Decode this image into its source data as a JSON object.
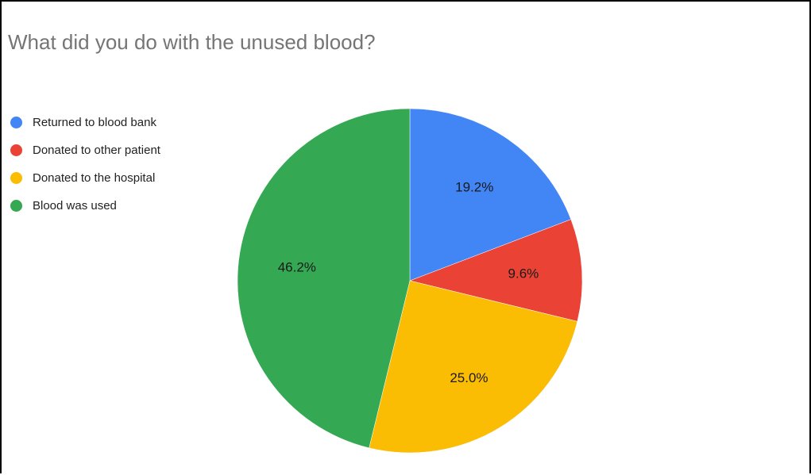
{
  "chart_data": {
    "type": "pie",
    "title": "What did you do with the unused blood?",
    "legend_position": "left",
    "start_angle_deg": 0,
    "direction": "clockwise",
    "categories": [
      "Returned to blood bank",
      "Donated to other patient",
      "Donated to the hospital",
      "Blood was used"
    ],
    "values": [
      19.2,
      9.6,
      25.0,
      46.2
    ],
    "labels": [
      "19.2%",
      "9.6%",
      "25.0%",
      "46.2%"
    ],
    "colors": [
      "#4285F4",
      "#EA4335",
      "#FBBC04",
      "#34A853"
    ]
  }
}
